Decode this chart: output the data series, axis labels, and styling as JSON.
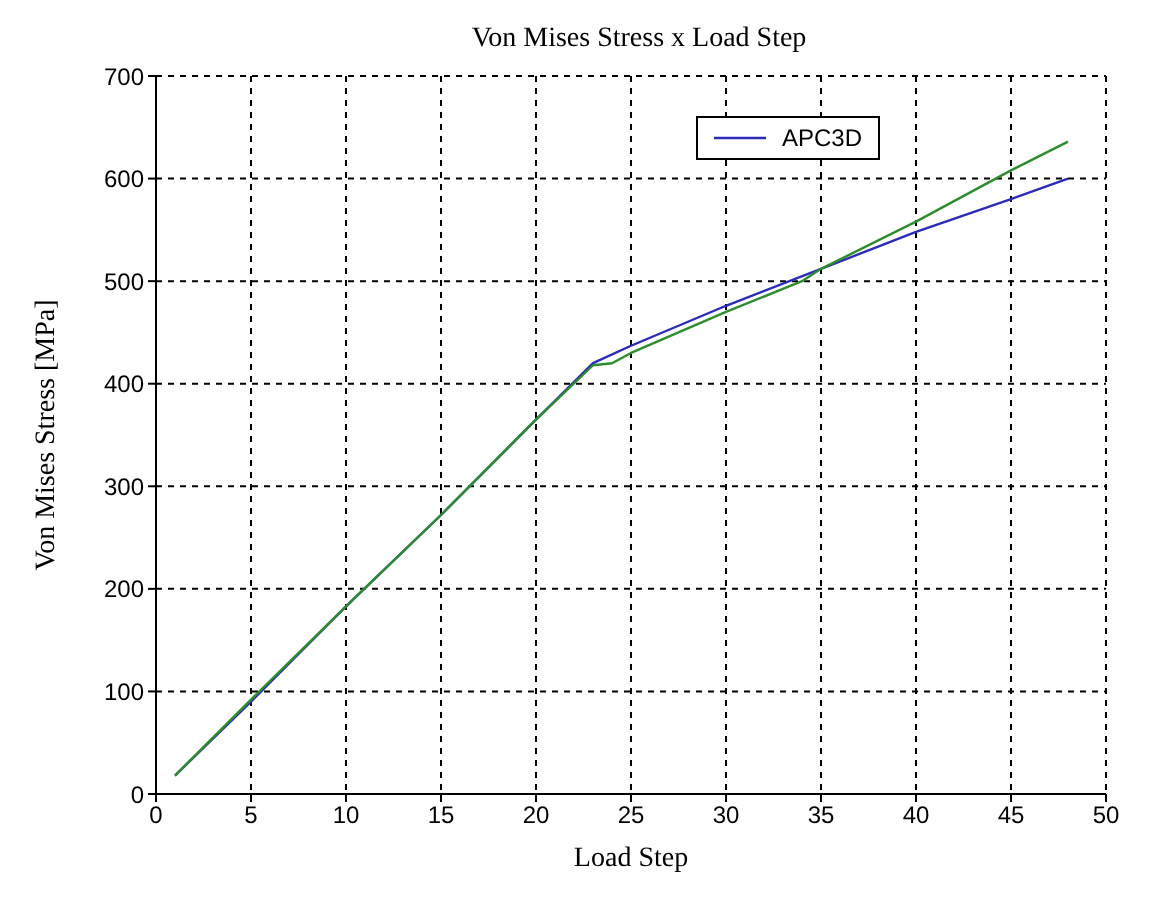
{
  "chart_data": {
    "type": "line",
    "title": "Von Mises Stress x Load Step",
    "xlabel": "Load Step",
    "ylabel": "Von Mises Stress [MPa]",
    "xlim": [
      0,
      50
    ],
    "xticks": [
      0,
      5,
      10,
      15,
      20,
      25,
      30,
      35,
      40,
      45,
      50
    ],
    "ylim": [
      0,
      700
    ],
    "yticks": [
      0,
      100,
      200,
      300,
      400,
      500,
      600,
      700
    ],
    "grid": true,
    "legend": "top right",
    "line_style": "solid",
    "marker": "none",
    "series": [
      {
        "name": "APC3D",
        "color": "#2b2bb8",
        "x": [
          1,
          5,
          10,
          15,
          20,
          23,
          25,
          30,
          35,
          40,
          45,
          48
        ],
        "values": [
          18,
          90,
          183,
          272,
          365,
          420,
          437,
          476,
          512,
          548,
          580,
          600
        ]
      },
      {
        "color": "#2e8b2e",
        "x": [
          1,
          5,
          10,
          15,
          20,
          23,
          24,
          25,
          30,
          34,
          35,
          40,
          45,
          48
        ],
        "values": [
          18,
          92,
          183,
          272,
          365,
          418,
          420,
          430,
          470,
          500,
          512,
          558,
          608,
          636
        ]
      }
    ]
  }
}
